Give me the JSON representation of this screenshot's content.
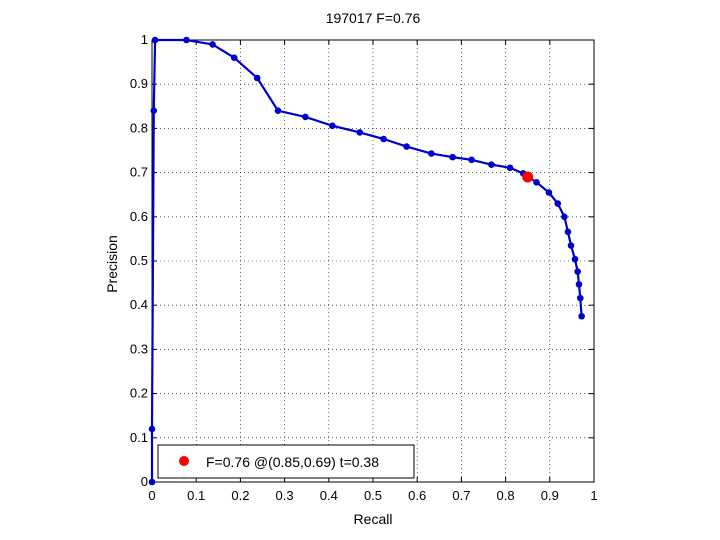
{
  "chart_data": {
    "type": "line",
    "title": "197017 F=0.76",
    "xlabel": "Recall",
    "ylabel": "Precision",
    "xlim": [
      0,
      1
    ],
    "ylim": [
      0,
      1
    ],
    "xticks": [
      "0",
      "0.1",
      "0.2",
      "0.3",
      "0.4",
      "0.5",
      "0.6",
      "0.7",
      "0.8",
      "0.9",
      "1"
    ],
    "yticks": [
      "0",
      "0.1",
      "0.2",
      "0.3",
      "0.4",
      "0.5",
      "0.6",
      "0.7",
      "0.8",
      "0.9",
      "1"
    ],
    "grid": true,
    "grid_style": "dotted",
    "legend_position": "bottom-left",
    "series": [
      {
        "color": "#0000cc",
        "x": [
          0.0,
          0.0,
          0.004,
          0.007,
          0.078,
          0.137,
          0.186,
          0.238,
          0.285,
          0.347,
          0.408,
          0.47,
          0.524,
          0.576,
          0.632,
          0.68,
          0.723,
          0.768,
          0.81,
          0.84,
          0.87,
          0.898,
          0.918,
          0.933,
          0.941,
          0.948,
          0.957,
          0.963,
          0.966,
          0.969,
          0.972
        ],
        "y": [
          0.0,
          0.12,
          0.84,
          1.0,
          1.0,
          0.99,
          0.96,
          0.914,
          0.84,
          0.826,
          0.806,
          0.791,
          0.776,
          0.759,
          0.743,
          0.735,
          0.729,
          0.718,
          0.711,
          0.698,
          0.678,
          0.655,
          0.63,
          0.6,
          0.566,
          0.535,
          0.504,
          0.476,
          0.447,
          0.416,
          0.375
        ]
      }
    ],
    "highlight_point": {
      "x": 0.85,
      "y": 0.69,
      "color": "#ff0000",
      "label": "F=0.76 @(0.85,0.69) t=0.38"
    }
  }
}
